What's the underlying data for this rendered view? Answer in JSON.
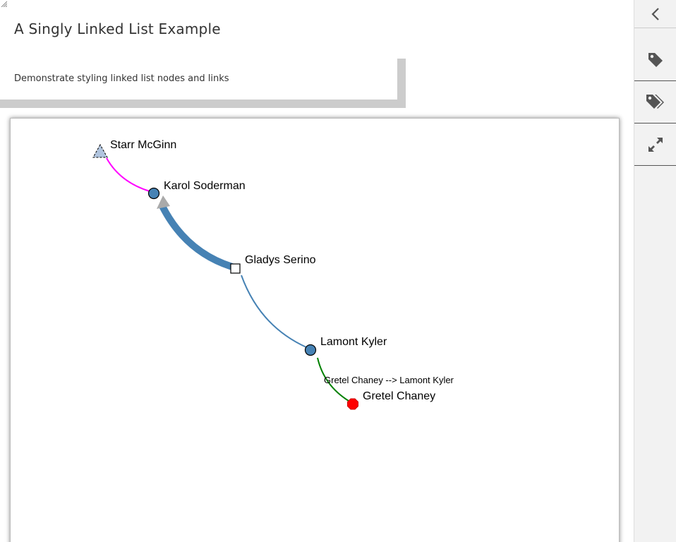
{
  "page": {
    "title": "A Singly Linked List Example",
    "description": "Demonstrate styling linked list nodes and links"
  },
  "sidebar": {
    "buttons": [
      {
        "icon": "chevron-left-icon"
      },
      {
        "icon": "tag-icon"
      },
      {
        "icon": "tags-icon"
      },
      {
        "icon": "expand-icon"
      }
    ]
  },
  "diagram": {
    "nodes": [
      {
        "name": "Starr McGinn",
        "shape": "triangle",
        "fill": "#b0c4de"
      },
      {
        "name": "Karol Soderman",
        "shape": "circle",
        "fill": "#4682b4"
      },
      {
        "name": "Gladys Serino",
        "shape": "square",
        "fill": "#ffffff"
      },
      {
        "name": "Lamont Kyler",
        "shape": "circle",
        "fill": "#4682b4"
      },
      {
        "name": "Gretel Chaney",
        "shape": "octagon",
        "fill": "#ff0000"
      }
    ],
    "links": [
      {
        "from": "Karol Soderman",
        "to": "Starr McGinn",
        "color": "#ff00ff"
      },
      {
        "from": "Gladys Serino",
        "to": "Karol Soderman",
        "color": "#4682b4",
        "arrow": "#aaaaaa"
      },
      {
        "from": "Lamont Kyler",
        "to": "Gladys Serino",
        "color": "#4682b4"
      },
      {
        "from": "Gretel Chaney",
        "to": "Lamont Kyler",
        "color": "#008000",
        "label": "Gretel Chaney --> Lamont Kyler"
      }
    ]
  }
}
